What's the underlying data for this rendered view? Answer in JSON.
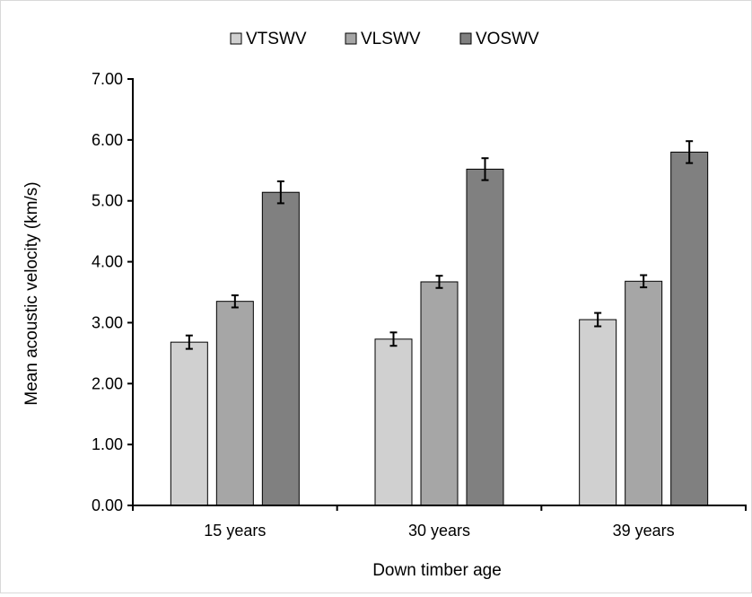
{
  "chart_data": {
    "type": "bar",
    "title": "",
    "xlabel": "Down timber age",
    "ylabel": "Mean acoustic velocity (km/s)",
    "ylim": [
      0,
      7
    ],
    "yticks": [
      "0.00",
      "1.00",
      "2.00",
      "3.00",
      "4.00",
      "5.00",
      "6.00",
      "7.00"
    ],
    "categories": [
      "15 years",
      "30 years",
      "39 years"
    ],
    "legend_position": "top",
    "grid": false,
    "series": [
      {
        "name": "VTSWV",
        "color": "#d0d0d0",
        "values": [
          2.68,
          2.73,
          3.05
        ],
        "errors": [
          0.11,
          0.11,
          0.11
        ]
      },
      {
        "name": "VLSWV",
        "color": "#a6a6a6",
        "values": [
          3.35,
          3.67,
          3.68
        ],
        "errors": [
          0.1,
          0.1,
          0.1
        ]
      },
      {
        "name": "VOSWV",
        "color": "#808080",
        "values": [
          5.14,
          5.52,
          5.8
        ],
        "errors": [
          0.18,
          0.18,
          0.18
        ]
      }
    ]
  }
}
